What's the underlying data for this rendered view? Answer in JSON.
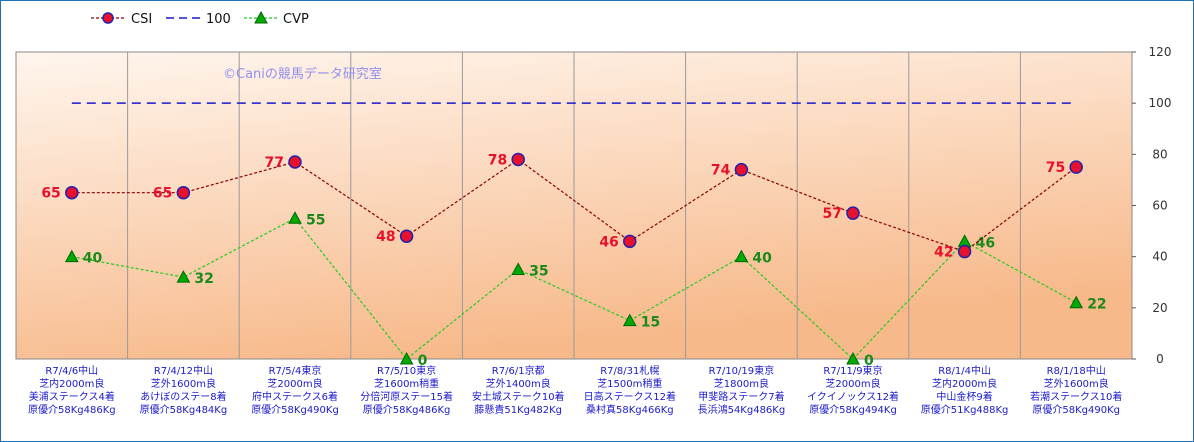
{
  "chart_data": {
    "type": "line",
    "watermark": "©Caniの競馬データ研究室",
    "categories": [
      [
        "R7/4/6中山",
        "芝内2000m良",
        "美浦ステークス4着",
        "原優介58Kg486Kg"
      ],
      [
        "R7/4/12中山",
        "芝外1600m良",
        "あけぼのステー8着",
        "原優介58Kg484Kg"
      ],
      [
        "R7/5/4東京",
        "芝2000m良",
        "府中ステークス6着",
        "原優介58Kg490Kg"
      ],
      [
        "R7/5/10東京",
        "芝1600m稍重",
        "分倍河原ステー15着",
        "原優介58Kg486Kg"
      ],
      [
        "R7/6/1京都",
        "芝外1400m良",
        "安土城ステーク10着",
        "藤懸貴51Kg482Kg"
      ],
      [
        "R7/8/31札幌",
        "芝1500m稍重",
        "日高ステークス12着",
        "桑村真58Kg466Kg"
      ],
      [
        "R7/10/19東京",
        "芝1800m良",
        "甲斐路ステーク7着",
        "長浜鴻54Kg486Kg"
      ],
      [
        "R7/11/9東京",
        "芝2000m良",
        "イクイノックス12着",
        "原優介58Kg494Kg"
      ],
      [
        "R8/1/4中山",
        "芝内2000m良",
        "中山金杯9着",
        "原優介51Kg488Kg"
      ],
      [
        "R8/1/18中山",
        "芝外1600m良",
        "若潮ステークス10着",
        "原優介58Kg490Kg"
      ]
    ],
    "series": [
      {
        "name": "CSI",
        "values": [
          65,
          65,
          77,
          48,
          78,
          46,
          74,
          57,
          42,
          75
        ],
        "color": "#8b0000",
        "marker": "circle",
        "marker_fill": "#e8112d",
        "marker_edge": "#2222aa",
        "label_color": "#e8112d"
      },
      {
        "name": "100",
        "values": [
          100,
          100,
          100,
          100,
          100,
          100,
          100,
          100,
          100,
          100
        ],
        "color": "#1a1acc",
        "marker": "none"
      },
      {
        "name": "CVP",
        "values": [
          40,
          32,
          55,
          0,
          35,
          15,
          40,
          0,
          46,
          22
        ],
        "color": "#22cc22",
        "marker": "triangle",
        "marker_fill": "#00aa00",
        "label_color": "#1a8a1a"
      }
    ],
    "y_ticks": [
      "0",
      "20",
      "40",
      "60",
      "80",
      "100",
      "120"
    ],
    "ylim": [
      0,
      120
    ],
    "y_axis_side": "right",
    "legend_position": "top-left",
    "grid": "vertical",
    "colors": {
      "bg_top": "#fff6ee",
      "bg_bottom": "#f7b98a",
      "frame": "#1f6fb5",
      "category_text": "#1a1acc"
    }
  }
}
